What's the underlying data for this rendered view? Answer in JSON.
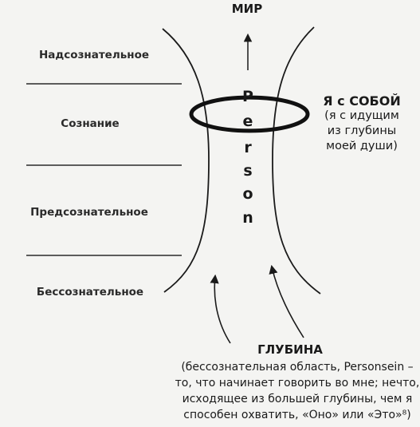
{
  "diagram": {
    "top_label": "МИР",
    "levels": [
      "Надсознательное",
      "Сознание",
      "Предсознательное",
      "Бессознательное"
    ],
    "vertical_word": [
      "P",
      "e",
      "r",
      "s",
      "o",
      "n"
    ],
    "right_label": {
      "title": "Я с СОБОЙ",
      "lines": [
        "(я с идущим",
        "из глубины",
        "моей души)"
      ]
    },
    "depth": {
      "title": "ГЛУБИНА",
      "lines": [
        "(бессознательная область, Personsein –",
        "то, что начинает говорить во мне; нечто,",
        "исходящее из большей глубины, чем я",
        "способен охватить, «Оно» или «Это»⁸)"
      ]
    }
  }
}
